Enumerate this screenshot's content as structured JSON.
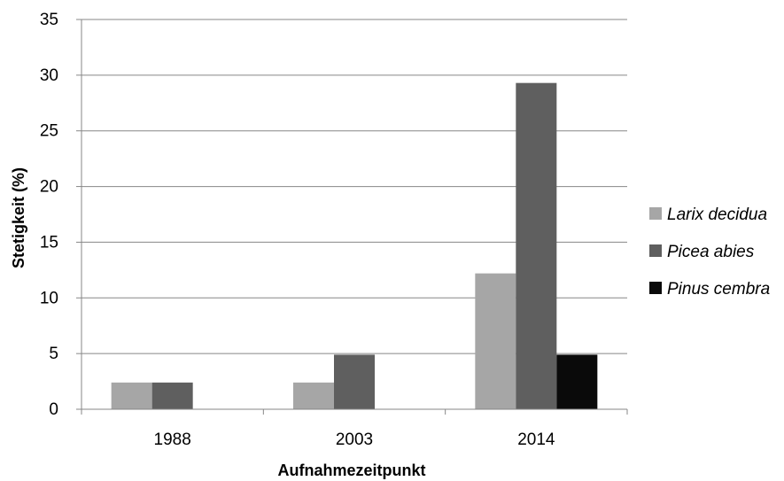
{
  "chart_data": {
    "type": "bar",
    "title": "",
    "xlabel": "Aufnahmezeitpunkt",
    "ylabel": "Stetigkeit (%)",
    "ylim": [
      0,
      35
    ],
    "yticks": [
      "0",
      "5",
      "10",
      "15",
      "20",
      "25",
      "30",
      "35"
    ],
    "grid": true,
    "legend_position": "right",
    "categories": [
      "1988",
      "2003",
      "2014"
    ],
    "series": [
      {
        "name": "Larix decidua",
        "color": "#a6a6a6",
        "values": [
          2.4,
          2.4,
          12.2
        ]
      },
      {
        "name": "Picea abies",
        "color": "#5f5f5f",
        "values": [
          2.4,
          4.9,
          29.3
        ]
      },
      {
        "name": "Pinus cembra",
        "color": "#0a0a0a",
        "values": [
          0,
          0,
          4.9
        ]
      }
    ]
  }
}
